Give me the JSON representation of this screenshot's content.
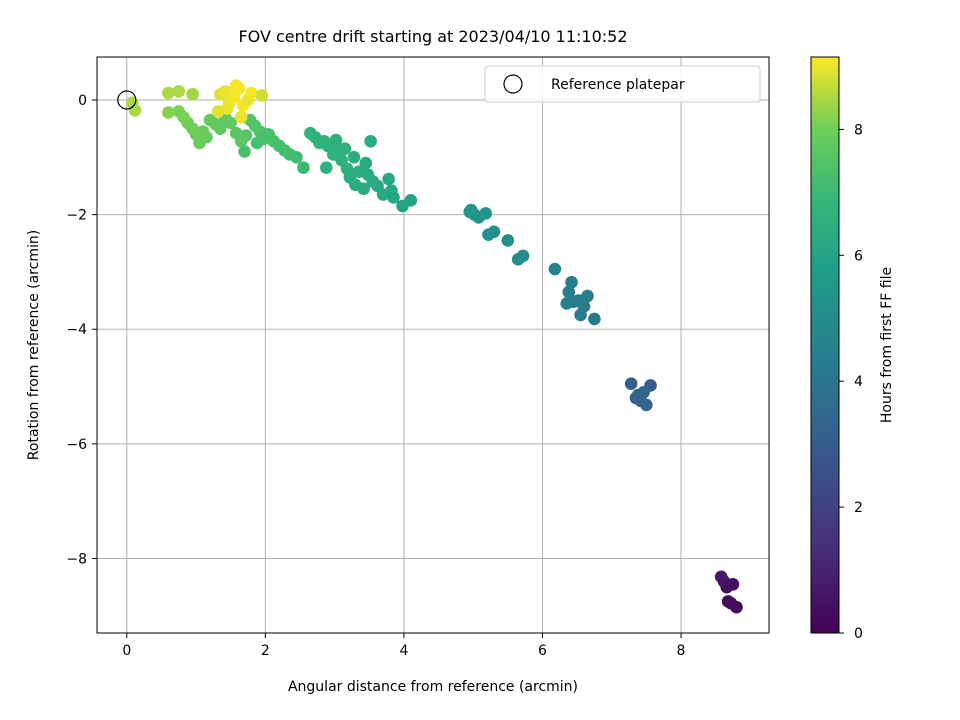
{
  "chart_data": {
    "type": "scatter",
    "title": "FOV centre drift starting at 2023/04/10 11:10:52",
    "xlabel": "Angular distance from reference (arcmin)",
    "ylabel": "Rotation from reference (arcmin)",
    "xlim": [
      -0.43,
      9.27
    ],
    "ylim": [
      -9.3,
      0.75
    ],
    "xticks": [
      0,
      2,
      4,
      6,
      8
    ],
    "yticks": [
      0,
      -2,
      -4,
      -6,
      -8
    ],
    "grid": true,
    "colormap": "viridis",
    "colorbar": {
      "label": "Hours from first FF file",
      "range": [
        0,
        9.15
      ],
      "ticks": [
        0,
        2,
        4,
        6,
        8
      ]
    },
    "legend": {
      "position": "top-right",
      "entries": [
        {
          "label": "Reference platepar",
          "marker": "open-circle",
          "x": 0,
          "y": 0
        }
      ]
    },
    "series": [
      {
        "x": [
          8.8,
          8.72,
          8.68,
          8.75,
          8.62,
          8.58,
          8.66,
          7.56,
          7.28,
          7.35,
          7.42,
          7.5,
          7.38,
          7.46,
          6.75,
          6.55,
          6.6,
          6.45,
          6.65,
          6.38,
          6.52,
          6.42,
          6.35,
          6.18,
          5.72,
          5.65,
          5.5,
          5.3,
          5.22,
          5.18,
          5.08,
          5.02,
          4.97,
          4.95,
          4.1,
          3.98,
          3.85,
          3.82,
          3.78,
          3.7,
          3.62,
          3.55,
          3.48,
          3.42,
          3.35,
          3.3,
          3.22,
          3.18,
          3.1,
          3.05,
          2.98,
          2.9,
          2.85,
          2.78,
          2.72,
          2.65,
          2.88,
          3.02,
          3.15,
          3.28,
          3.45,
          3.52,
          2.55,
          2.45,
          2.35,
          2.28,
          2.2,
          2.12,
          2.05,
          1.98,
          1.92,
          1.85,
          1.78,
          1.72,
          1.65,
          1.58,
          1.5,
          1.42,
          1.35,
          1.28,
          1.2,
          1.15,
          1.1,
          1.05,
          1.0,
          0.95,
          0.88,
          0.82,
          0.75,
          0.6,
          1.7,
          1.88,
          2.02,
          1.35,
          1.42,
          1.48,
          1.55,
          1.62,
          1.68,
          1.75,
          1.8,
          1.95,
          1.45,
          1.58,
          1.32,
          1.65,
          0.08,
          0.12,
          0.6,
          0.75,
          0.95
        ],
        "y": [
          -8.85,
          -8.78,
          -8.75,
          -8.45,
          -8.4,
          -8.32,
          -8.5,
          -4.98,
          -4.95,
          -5.2,
          -5.25,
          -5.32,
          -5.15,
          -5.1,
          -3.82,
          -3.75,
          -3.6,
          -3.52,
          -3.42,
          -3.35,
          -3.5,
          -3.18,
          -3.55,
          -2.95,
          -2.72,
          -2.78,
          -2.45,
          -2.3,
          -2.35,
          -1.98,
          -2.05,
          -2.0,
          -1.92,
          -1.95,
          -1.75,
          -1.85,
          -1.7,
          -1.58,
          -1.38,
          -1.65,
          -1.5,
          -1.42,
          -1.3,
          -1.55,
          -1.25,
          -1.48,
          -1.35,
          -1.2,
          -1.05,
          -0.9,
          -0.95,
          -0.8,
          -0.72,
          -0.75,
          -0.65,
          -0.58,
          -1.18,
          -0.7,
          -0.85,
          -1.0,
          -1.1,
          -0.72,
          -1.18,
          -1.0,
          -0.95,
          -0.88,
          -0.8,
          -0.72,
          -0.6,
          -0.68,
          -0.55,
          -0.45,
          -0.35,
          -0.62,
          -0.72,
          -0.58,
          -0.4,
          -0.3,
          -0.5,
          -0.42,
          -0.35,
          -0.65,
          -0.55,
          -0.75,
          -0.6,
          -0.5,
          -0.4,
          -0.3,
          -0.2,
          -0.22,
          -0.9,
          -0.75,
          -0.6,
          0.1,
          0.15,
          -0.05,
          0.05,
          0.2,
          -0.1,
          0.0,
          0.12,
          0.08,
          -0.15,
          0.25,
          -0.2,
          -0.3,
          -0.05,
          -0.18,
          0.12,
          0.15,
          0.1
        ],
        "hours": [
          0.2,
          0.3,
          0.3,
          0.4,
          0.5,
          0.6,
          0.4,
          3.0,
          3.1,
          3.2,
          3.2,
          3.3,
          3.2,
          3.3,
          4.1,
          4.2,
          4.2,
          4.3,
          4.3,
          4.4,
          4.3,
          4.4,
          4.4,
          4.6,
          5.0,
          5.0,
          5.1,
          5.2,
          5.2,
          5.3,
          5.3,
          5.3,
          5.4,
          5.4,
          6.0,
          6.0,
          6.1,
          6.1,
          6.2,
          6.2,
          6.2,
          6.3,
          6.3,
          6.3,
          6.4,
          6.4,
          6.4,
          6.5,
          6.5,
          6.5,
          6.6,
          6.6,
          6.6,
          6.7,
          6.7,
          6.7,
          6.6,
          6.5,
          6.5,
          6.4,
          6.3,
          6.4,
          7.0,
          7.1,
          7.1,
          7.2,
          7.2,
          7.3,
          7.3,
          7.4,
          7.4,
          7.5,
          7.5,
          7.5,
          7.6,
          7.6,
          7.7,
          7.7,
          7.7,
          7.8,
          7.8,
          7.8,
          7.9,
          7.9,
          7.9,
          8.0,
          8.0,
          8.1,
          8.1,
          8.2,
          7.3,
          7.2,
          7.2,
          8.9,
          9.0,
          9.0,
          9.1,
          9.1,
          9.1,
          9.0,
          9.1,
          8.8,
          9.0,
          9.1,
          8.9,
          9.0,
          8.5,
          8.5,
          8.5,
          8.5,
          8.4
        ]
      }
    ]
  }
}
